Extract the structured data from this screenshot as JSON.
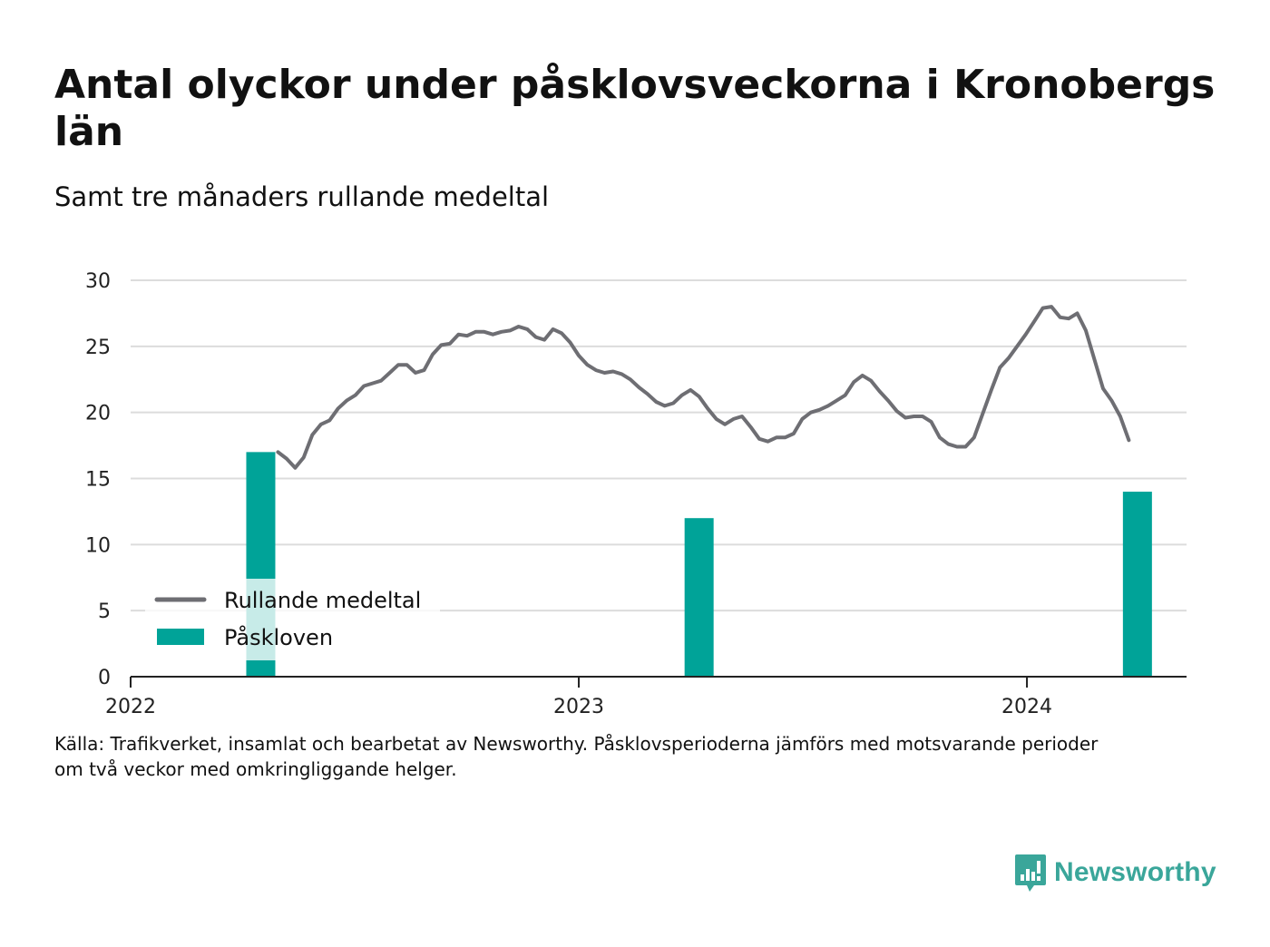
{
  "title": "Antal olyckor under påsklovsveckorna i Kronobergs län",
  "subtitle": "Samt tre månaders rullande medeltal",
  "source_lines": [
    "Källa: Trafikverket, insamlat och bearbetat av Newsworthy. Påsklovsperioderna jämförs med motsvarande perioder",
    "om två veckor med omkringliggande helger."
  ],
  "logo": {
    "text": "Newsworthy",
    "color": "#3aa69a",
    "icon": "newsworthy-chat-bars-icon"
  },
  "chart_data": {
    "type": "bar+line",
    "ylim": [
      0,
      30
    ],
    "yticks": [
      0,
      5,
      10,
      15,
      20,
      25,
      30
    ],
    "xlim": [
      "2022-01-01",
      "2024-05-10"
    ],
    "xticks": [
      {
        "value": "2022-01-01",
        "label": "2022"
      },
      {
        "value": "2023-01-01",
        "label": "2023"
      },
      {
        "value": "2024-01-01",
        "label": "2024"
      }
    ],
    "grid": true,
    "legend_placement": "bottom-left",
    "legend": [
      {
        "label": "Rullande medeltal",
        "type": "line",
        "color": "#6e6e73"
      },
      {
        "label": "Påskloven",
        "type": "bar",
        "color": "#00a398"
      }
    ],
    "bars": {
      "name": "Påskloven",
      "color": "#00a398",
      "points": [
        {
          "x": "2022-04-17",
          "y": 17
        },
        {
          "x": "2023-04-09",
          "y": 12
        },
        {
          "x": "2024-03-31",
          "y": 14
        }
      ]
    },
    "line": {
      "name": "Rullande medeltal",
      "color": "#6e6e73",
      "points": [
        [
          "2022-05-01",
          17.0
        ],
        [
          "2022-05-08",
          16.5
        ],
        [
          "2022-05-15",
          15.8
        ],
        [
          "2022-05-22",
          16.6
        ],
        [
          "2022-05-29",
          18.3
        ],
        [
          "2022-06-05",
          19.1
        ],
        [
          "2022-06-12",
          19.4
        ],
        [
          "2022-06-19",
          20.3
        ],
        [
          "2022-06-26",
          20.9
        ],
        [
          "2022-07-03",
          21.3
        ],
        [
          "2022-07-10",
          22.0
        ],
        [
          "2022-07-17",
          22.2
        ],
        [
          "2022-07-24",
          22.4
        ],
        [
          "2022-07-31",
          23.0
        ],
        [
          "2022-08-07",
          23.6
        ],
        [
          "2022-08-14",
          23.6
        ],
        [
          "2022-08-21",
          23.0
        ],
        [
          "2022-08-28",
          23.2
        ],
        [
          "2022-09-04",
          24.4
        ],
        [
          "2022-09-11",
          25.1
        ],
        [
          "2022-09-18",
          25.2
        ],
        [
          "2022-09-25",
          25.9
        ],
        [
          "2022-10-02",
          25.8
        ],
        [
          "2022-10-09",
          26.1
        ],
        [
          "2022-10-16",
          26.1
        ],
        [
          "2022-10-23",
          25.9
        ],
        [
          "2022-10-30",
          26.1
        ],
        [
          "2022-11-06",
          26.2
        ],
        [
          "2022-11-13",
          26.5
        ],
        [
          "2022-11-20",
          26.3
        ],
        [
          "2022-11-27",
          25.7
        ],
        [
          "2022-12-04",
          25.5
        ],
        [
          "2022-12-11",
          26.3
        ],
        [
          "2022-12-18",
          26.0
        ],
        [
          "2022-12-25",
          25.3
        ],
        [
          "2023-01-01",
          24.3
        ],
        [
          "2023-01-08",
          23.6
        ],
        [
          "2023-01-15",
          23.2
        ],
        [
          "2023-01-22",
          23.0
        ],
        [
          "2023-01-29",
          23.1
        ],
        [
          "2023-02-05",
          22.9
        ],
        [
          "2023-02-12",
          22.5
        ],
        [
          "2023-02-19",
          21.9
        ],
        [
          "2023-02-26",
          21.4
        ],
        [
          "2023-03-05",
          20.8
        ],
        [
          "2023-03-12",
          20.5
        ],
        [
          "2023-03-19",
          20.7
        ],
        [
          "2023-03-26",
          21.3
        ],
        [
          "2023-04-02",
          21.7
        ],
        [
          "2023-04-09",
          21.2
        ],
        [
          "2023-04-16",
          20.3
        ],
        [
          "2023-04-23",
          19.5
        ],
        [
          "2023-04-30",
          19.1
        ],
        [
          "2023-05-07",
          19.5
        ],
        [
          "2023-05-14",
          19.7
        ],
        [
          "2023-05-21",
          18.9
        ],
        [
          "2023-05-28",
          18.0
        ],
        [
          "2023-06-04",
          17.8
        ],
        [
          "2023-06-11",
          18.1
        ],
        [
          "2023-06-18",
          18.1
        ],
        [
          "2023-06-25",
          18.4
        ],
        [
          "2023-07-02",
          19.5
        ],
        [
          "2023-07-09",
          20.0
        ],
        [
          "2023-07-16",
          20.2
        ],
        [
          "2023-07-23",
          20.5
        ],
        [
          "2023-07-30",
          20.9
        ],
        [
          "2023-08-06",
          21.3
        ],
        [
          "2023-08-13",
          22.3
        ],
        [
          "2023-08-20",
          22.8
        ],
        [
          "2023-08-27",
          22.4
        ],
        [
          "2023-09-03",
          21.6
        ],
        [
          "2023-09-10",
          20.9
        ],
        [
          "2023-09-17",
          20.1
        ],
        [
          "2023-09-24",
          19.6
        ],
        [
          "2023-10-01",
          19.7
        ],
        [
          "2023-10-08",
          19.7
        ],
        [
          "2023-10-15",
          19.3
        ],
        [
          "2023-10-22",
          18.1
        ],
        [
          "2023-10-29",
          17.6
        ],
        [
          "2023-11-05",
          17.4
        ],
        [
          "2023-11-12",
          17.4
        ],
        [
          "2023-11-19",
          18.1
        ],
        [
          "2023-11-26",
          19.9
        ],
        [
          "2023-12-03",
          21.7
        ],
        [
          "2023-12-10",
          23.4
        ],
        [
          "2023-12-17",
          24.1
        ],
        [
          "2023-12-24",
          25.0
        ],
        [
          "2023-12-31",
          25.9
        ],
        [
          "2024-01-07",
          26.9
        ],
        [
          "2024-01-14",
          27.9
        ],
        [
          "2024-01-21",
          28.0
        ],
        [
          "2024-01-28",
          27.2
        ],
        [
          "2024-02-04",
          27.1
        ],
        [
          "2024-02-11",
          27.5
        ],
        [
          "2024-02-18",
          26.2
        ],
        [
          "2024-02-25",
          24.0
        ],
        [
          "2024-03-03",
          21.8
        ],
        [
          "2024-03-10",
          20.9
        ],
        [
          "2024-03-17",
          19.7
        ],
        [
          "2024-03-24",
          17.9
        ]
      ]
    }
  }
}
